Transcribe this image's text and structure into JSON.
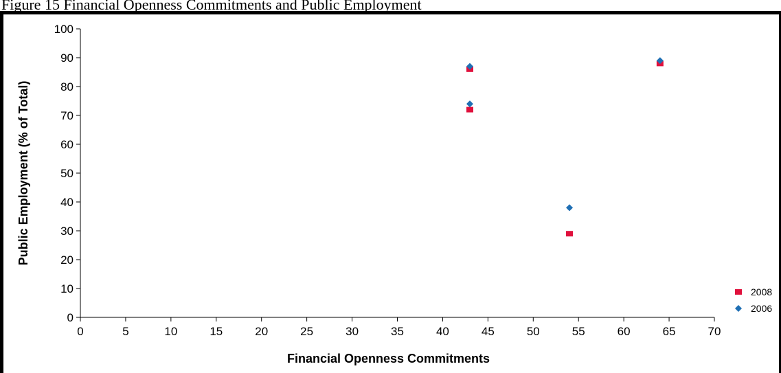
{
  "caption": "Figure 15 Financial Openness Commitments and Public Employment",
  "colors": {
    "s2008": "#e0103c",
    "s2006": "#1f6fb4"
  },
  "chart_data": {
    "type": "scatter",
    "title": "",
    "xlabel": "Financial Openness Commitments",
    "ylabel": "Public Employment (% of Total)",
    "xlim": [
      0,
      70
    ],
    "ylim": [
      0,
      100
    ],
    "xticks": [
      0,
      5,
      10,
      15,
      20,
      25,
      30,
      35,
      40,
      45,
      50,
      55,
      60,
      65,
      70
    ],
    "yticks": [
      0,
      10,
      20,
      30,
      40,
      50,
      60,
      70,
      80,
      90,
      100
    ],
    "grid": false,
    "legend": "right",
    "series": [
      {
        "name": "2008",
        "marker": "square",
        "color": "#e0103c",
        "points": [
          [
            43,
            86
          ],
          [
            43,
            72
          ],
          [
            54,
            29
          ],
          [
            64,
            88
          ]
        ]
      },
      {
        "name": "2006",
        "marker": "diamond",
        "color": "#1f6fb4",
        "points": [
          [
            43,
            87
          ],
          [
            43,
            74
          ],
          [
            54,
            38
          ],
          [
            64,
            89
          ]
        ]
      }
    ]
  }
}
